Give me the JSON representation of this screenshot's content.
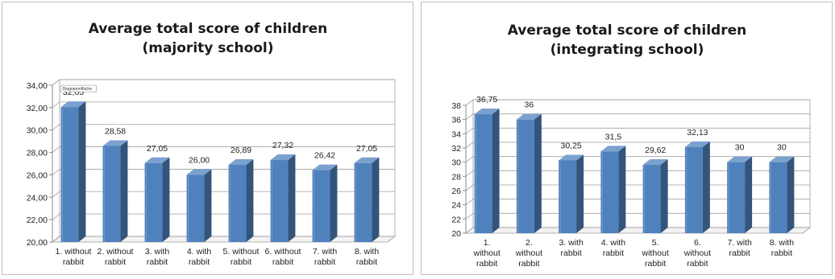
{
  "chart_data": [
    {
      "type": "bar",
      "title_lines": [
        "Average total score of children",
        "(majority school)"
      ],
      "categories": [
        [
          "1. without",
          "rabbit"
        ],
        [
          "2. without",
          "rabbit"
        ],
        [
          "3. with",
          "rabbit"
        ],
        [
          "4. with",
          "rabbit"
        ],
        [
          "5. without",
          "rabbit"
        ],
        [
          "6. without",
          "rabbit"
        ],
        [
          "7. with",
          "rabbit"
        ],
        [
          "8. with",
          "rabbit"
        ]
      ],
      "values": [
        32.05,
        28.58,
        27.05,
        26.0,
        26.89,
        27.32,
        26.42,
        27.05
      ],
      "data_labels": [
        "32,05",
        "28,58",
        "27,05",
        "26,00",
        "26,89",
        "27,32",
        "26,42",
        "27,05"
      ],
      "yticks": [
        "20,00",
        "22,00",
        "24,00",
        "26,00",
        "28,00",
        "30,00",
        "32,00",
        "34,00"
      ],
      "ylim": [
        20,
        34
      ],
      "ystep": 2,
      "tag_label": "Diagrammfläche",
      "grid": true,
      "color": "#4f81bd"
    },
    {
      "type": "bar",
      "title_lines": [
        "Average total score of children",
        "(integrating school)"
      ],
      "categories": [
        [
          "1.",
          "without",
          "rabbit"
        ],
        [
          "2.",
          "without",
          "rabbit"
        ],
        [
          "3. with",
          "rabbit"
        ],
        [
          "4. with",
          "rabbit"
        ],
        [
          "5.",
          "without",
          "rabbit"
        ],
        [
          "6.",
          "without",
          "rabbit"
        ],
        [
          "7. with",
          "rabbit"
        ],
        [
          "8. with",
          "rabbit"
        ]
      ],
      "values": [
        36.75,
        36,
        30.25,
        31.5,
        29.62,
        32.13,
        30,
        30
      ],
      "data_labels": [
        "36,75",
        "36",
        "30,25",
        "31,5",
        "29,62",
        "32,13",
        "30",
        "30"
      ],
      "yticks": [
        "20",
        "22",
        "24",
        "26",
        "28",
        "30",
        "32",
        "34",
        "36",
        "38"
      ],
      "ylim": [
        20,
        38
      ],
      "ystep": 2,
      "grid": true,
      "color": "#4f81bd"
    }
  ]
}
